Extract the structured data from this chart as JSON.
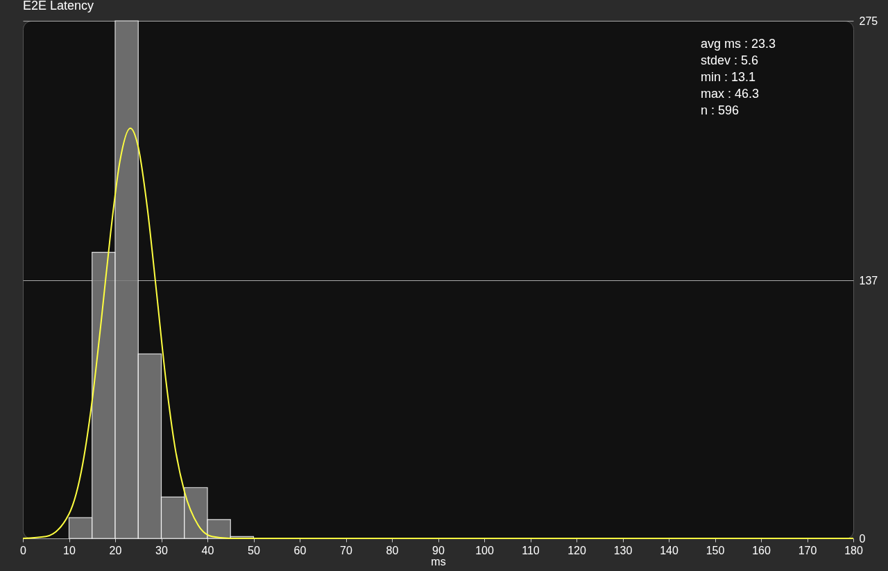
{
  "chart_data": {
    "type": "histogram",
    "title": "E2E Latency",
    "xlabel": "ms",
    "bins": [
      10,
      15,
      20,
      25,
      30,
      35,
      40,
      45,
      50
    ],
    "series": [
      {
        "color": "#7c7c7c",
        "values": [
          11,
          152,
          275,
          98,
          22,
          27,
          10,
          1
        ]
      },
      {
        "type": "line",
        "color": "#ffff40",
        "x": [
          0,
          5,
          10,
          13,
          15,
          17,
          19,
          21,
          23.3,
          25,
          27,
          29,
          31,
          33,
          35,
          38,
          41,
          45,
          50,
          60,
          180
        ],
        "values": [
          0,
          1,
          13,
          40,
          73,
          116,
          162,
          200,
          218,
          208,
          175,
          130,
          84,
          48,
          25,
          7,
          1,
          0,
          0,
          0,
          0
        ]
      }
    ],
    "xlim": [
      0,
      180
    ],
    "xticks": [
      0,
      10,
      20,
      30,
      40,
      50,
      60,
      70,
      80,
      90,
      100,
      110,
      120,
      130,
      140,
      150,
      160,
      170,
      180
    ],
    "ylim": [
      0,
      275
    ],
    "yticks": [
      0,
      137,
      275
    ],
    "grid": "y",
    "annotations": [
      "avg ms : 23.3",
      "stdev : 5.6",
      "min : 13.1",
      "max : 46.3",
      "n : 596"
    ]
  }
}
